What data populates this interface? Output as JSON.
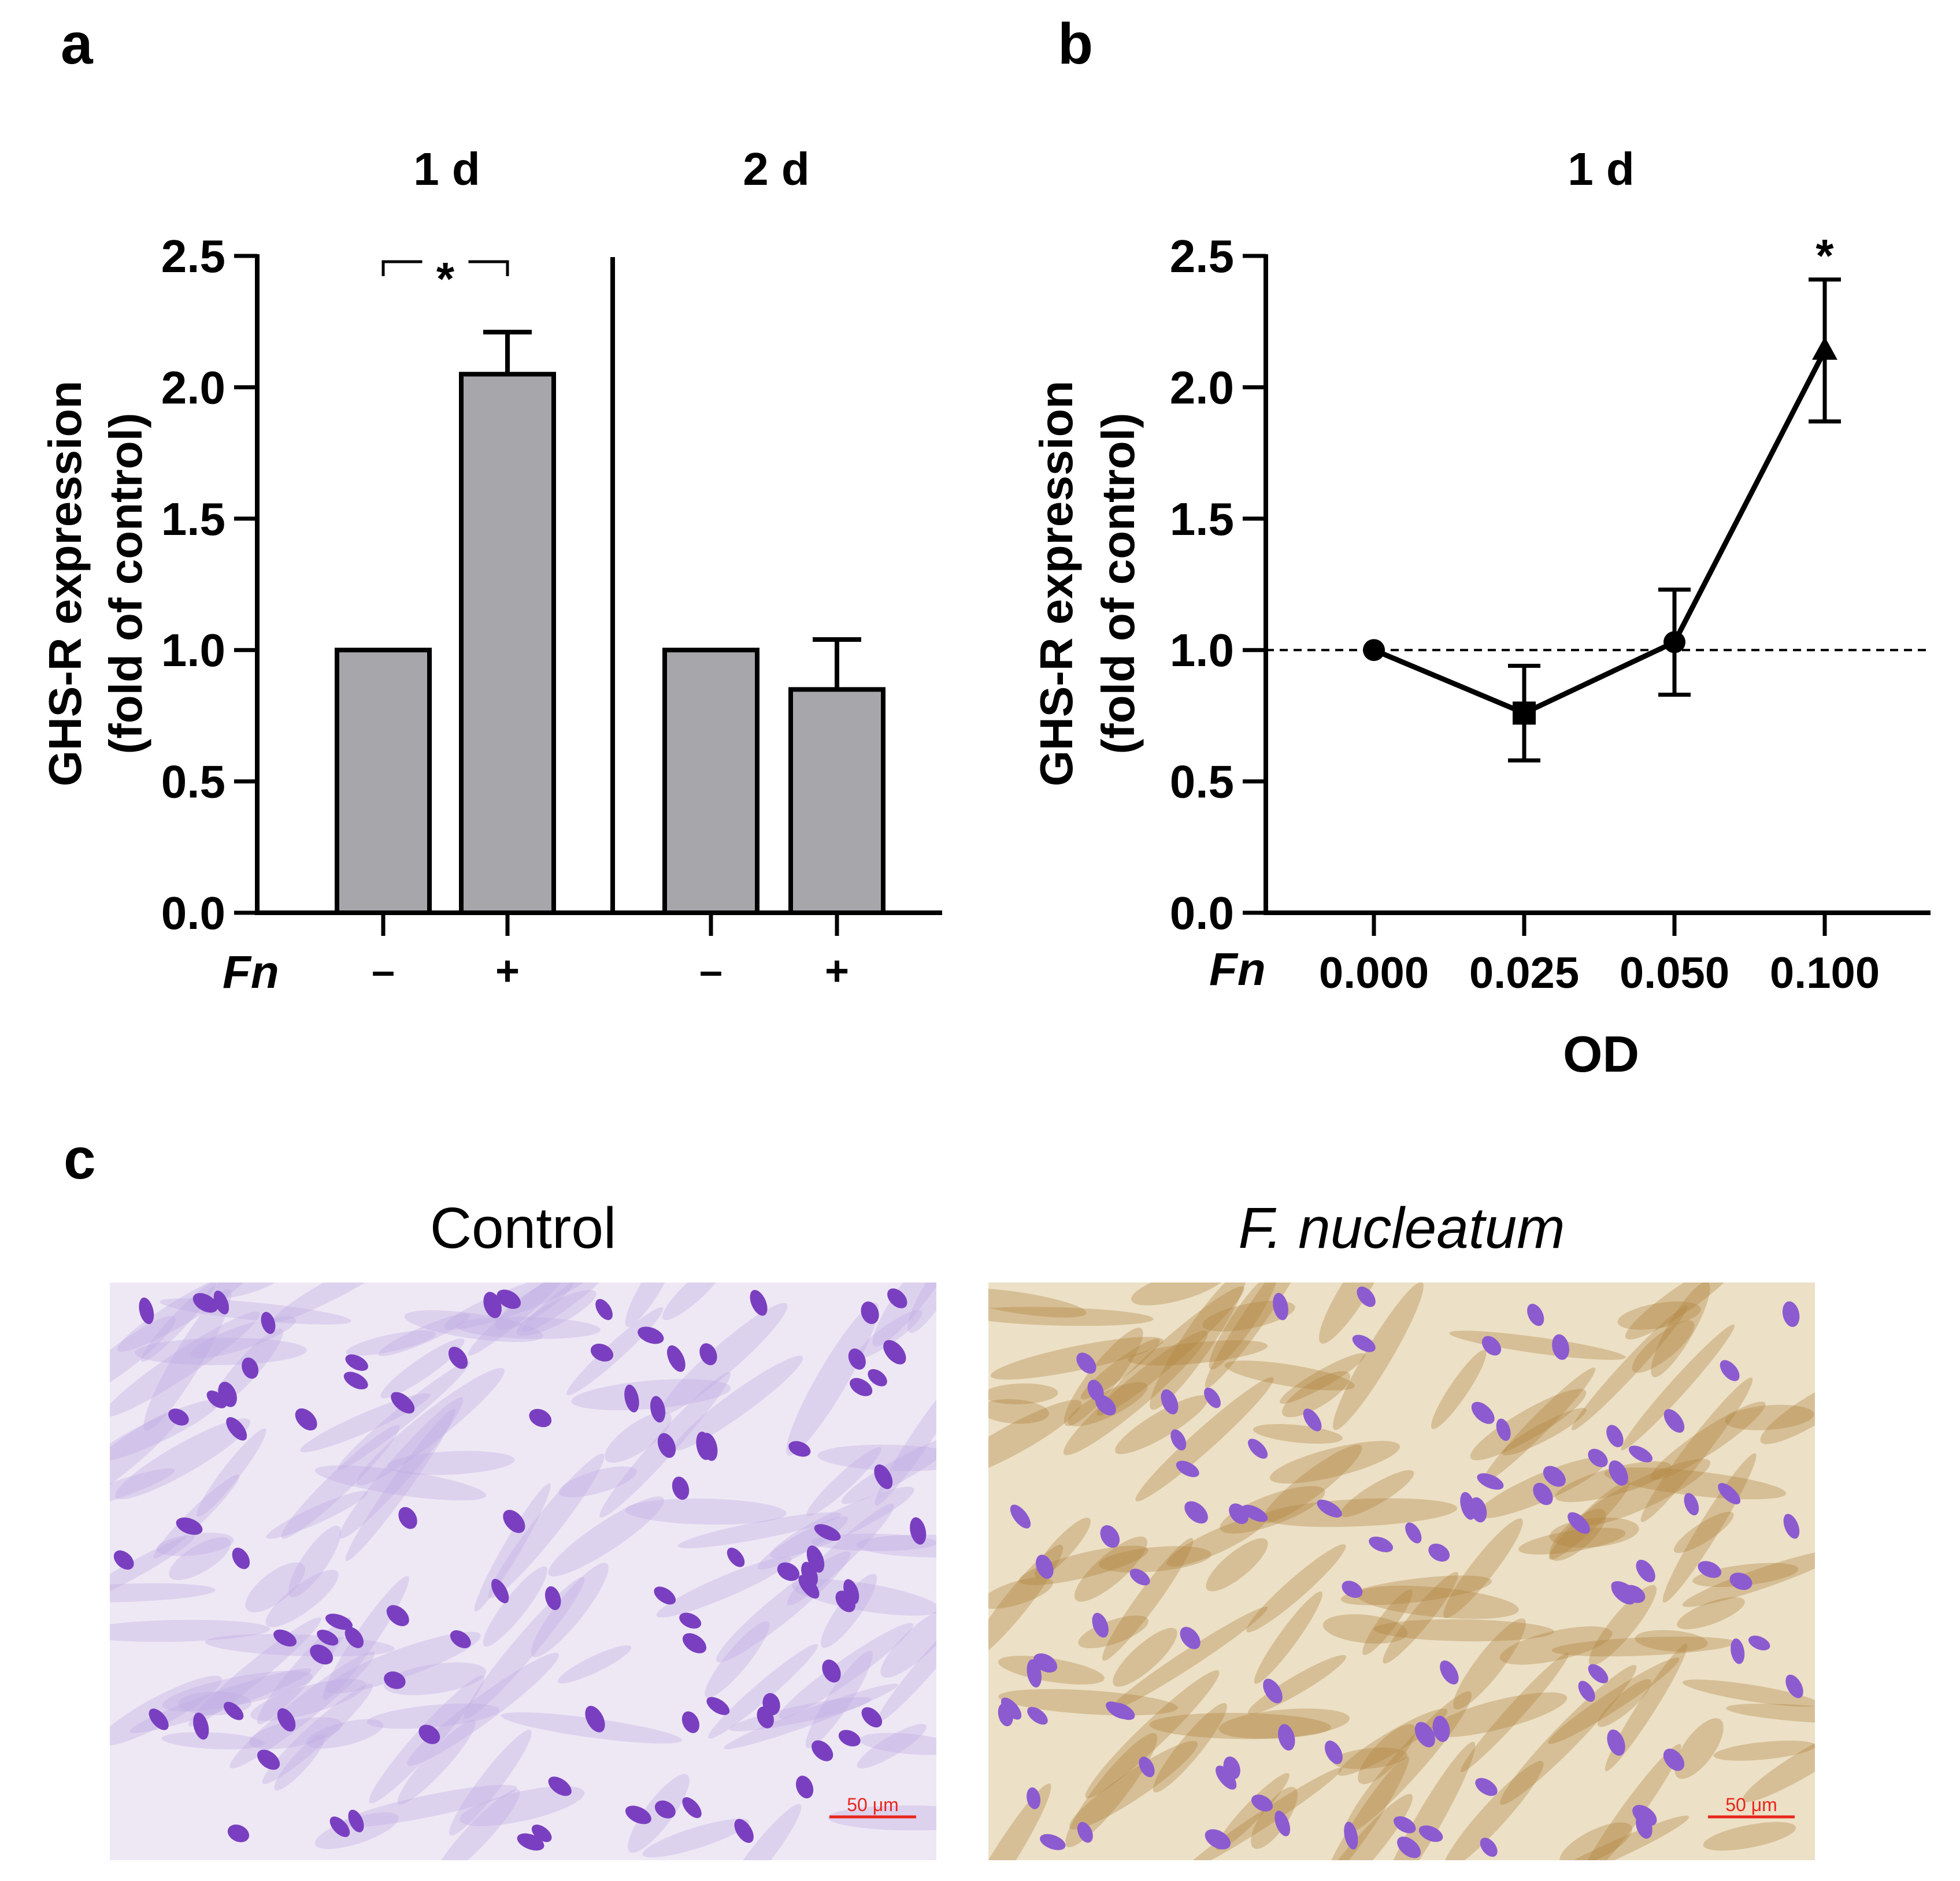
{
  "panels": {
    "a": {
      "letter": "a"
    },
    "b": {
      "letter": "b"
    },
    "c": {
      "letter": "c"
    }
  },
  "chart_data": [
    {
      "id": "a",
      "type": "bar",
      "title": "",
      "group_titles": [
        "1 d",
        "2 d"
      ],
      "ylabel": "GHS-R expression",
      "ylabel2": "(fold of control)",
      "xlabel": "",
      "row_label": "Fn",
      "ylim": [
        0,
        2.5
      ],
      "yticks": [
        "0.0",
        "0.5",
        "1.0",
        "1.5",
        "2.0",
        "2.5"
      ],
      "categories": [
        "–",
        "+",
        "–",
        "+"
      ],
      "groups": [
        "1 d",
        "1 d",
        "2 d",
        "2 d"
      ],
      "values": [
        1.0,
        2.05,
        1.0,
        0.85
      ],
      "errors": [
        0,
        0.16,
        0,
        0.19
      ],
      "bar_color": "#a6a6ab",
      "significance": [
        {
          "between": [
            0,
            1
          ],
          "label": "*"
        }
      ]
    },
    {
      "id": "b",
      "type": "line",
      "title": "1 d",
      "ylabel": "GHS-R expression",
      "ylabel2": "(fold of control)",
      "xlabel": "OD",
      "row_label": "Fn",
      "ylim": [
        0,
        2.5
      ],
      "yticks": [
        "0.0",
        "0.5",
        "1.0",
        "1.5",
        "2.0",
        "2.5"
      ],
      "x": [
        "0.000",
        "0.025",
        "0.050",
        "0.100"
      ],
      "values": [
        1.0,
        0.76,
        1.03,
        2.14
      ],
      "errors": [
        0,
        0.18,
        0.2,
        0.27
      ],
      "reference_line": 1.0,
      "annotations": [
        {
          "index": 3,
          "label": "*"
        }
      ]
    }
  ],
  "micrographs": [
    {
      "title": "Control",
      "italic": false,
      "scale_bar": "50 μm",
      "stain": "#eee8f5"
    },
    {
      "title": "F. nucleatum",
      "italic": true,
      "scale_bar": "50 μm",
      "stain": "#ece0c6"
    }
  ],
  "colors": {
    "nucleus": "#7a3fc0",
    "nucleus_brown": "#8c5bd0",
    "cytoplasm_brown": "#b58a45",
    "scale_bar": "#e8261c"
  }
}
